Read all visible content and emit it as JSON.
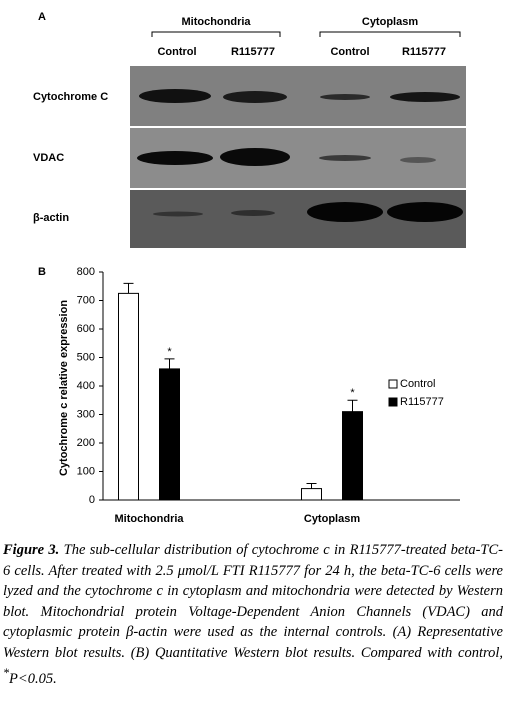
{
  "panel_a": {
    "label": "A",
    "groups": [
      {
        "name": "Mitochondria",
        "lanes": [
          "Control",
          "R115777"
        ]
      },
      {
        "name": "Cytoplasm",
        "lanes": [
          "Control",
          "R115777"
        ]
      }
    ],
    "rows": [
      "Cytochrome C",
      "VDAC",
      "β-actin"
    ]
  },
  "panel_b_label": "B",
  "chart_data": {
    "type": "bar",
    "y_label": "Cytochrome c  relative expression",
    "categories": [
      "Mitochondria",
      "Cytoplasm"
    ],
    "series": [
      {
        "name": "Control",
        "color": "#ffffff",
        "values": [
          725,
          40
        ],
        "errors": [
          35,
          18
        ]
      },
      {
        "name": "R115777",
        "color": "#000000",
        "values": [
          460,
          310
        ],
        "errors": [
          35,
          40
        ],
        "markers": [
          "*",
          "*"
        ]
      }
    ],
    "ylim": [
      0,
      800
    ],
    "yticks": [
      0,
      100,
      200,
      300,
      400,
      500,
      600,
      700,
      800
    ],
    "grid": false,
    "legend": "right"
  },
  "caption": {
    "label": "Figure 3.",
    "text": " The sub-cellular distribution of cytochrome c in R115777-treated beta-TC-6 cells. After treated with 2.5 μmol/L FTI R115777 for 24 h, the beta-TC-6 cells were lyzed and the cytochrome c in cytoplasm and mitochondria were detected by Western blot. Mitochondrial protein Voltage-Dependent Anion Channels (VDAC) and cytoplasmic protein β-actin were used as the internal controls. (A) Representative Western blot results. (B) Quantitative Western blot results. Compared with control, ",
    "sup": "*",
    "tail": "P<0.05."
  }
}
